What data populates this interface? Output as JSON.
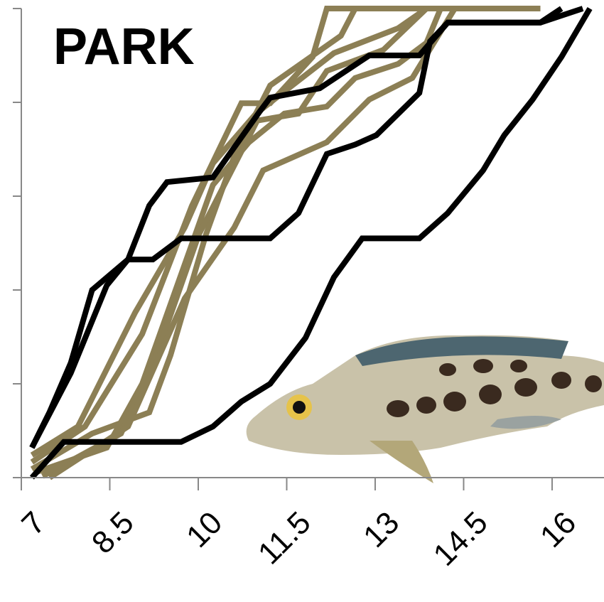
{
  "chart_data": {
    "type": "line",
    "title": "PARK",
    "xlim": [
      7,
      16.88
    ],
    "ylim": [
      0,
      1
    ],
    "xticks": [
      7,
      8.5,
      10,
      11.5,
      13,
      14.5,
      16
    ],
    "yticks": [
      0,
      0.2,
      0.4,
      0.6,
      0.8,
      1
    ],
    "series": [
      {
        "color": "#8c7f55",
        "x": [
          7.18,
          8.08,
          9.05,
          9.89,
          10.73,
          11.22,
          11.94,
          12.18,
          15.8
        ],
        "values": [
          0.033,
          0.109,
          0.306,
          0.579,
          0.798,
          0.798,
          0.897,
          1.0,
          1.0
        ]
      },
      {
        "color": "#8c7f55",
        "x": [
          7.18,
          8.2,
          9.17,
          9.53,
          10.13,
          10.61,
          11.22,
          12.42,
          12.66,
          15.8
        ],
        "values": [
          0.018,
          0.094,
          0.139,
          0.261,
          0.518,
          0.685,
          0.836,
          0.942,
          1.0,
          1.0
        ]
      },
      {
        "color": "#8c7f55",
        "x": [
          7.24,
          8.45,
          9.05,
          9.65,
          10.25,
          10.86,
          11.46,
          12.18,
          12.66,
          13.39,
          13.87,
          14.11,
          15.8
        ],
        "values": [
          0.011,
          0.064,
          0.2,
          0.412,
          0.624,
          0.715,
          0.776,
          0.791,
          0.852,
          0.882,
          0.927,
          1.0,
          1.0
        ]
      },
      {
        "color": "#8c7f55",
        "x": [
          7.36,
          8.69,
          9.29,
          10.01,
          11.0,
          11.7,
          12.18,
          13.14,
          13.87,
          15.8
        ],
        "values": [
          0.003,
          0.094,
          0.261,
          0.518,
          0.761,
          0.776,
          0.867,
          0.912,
          1.0,
          1.0
        ]
      },
      {
        "color": "#8c7f55",
        "x": [
          7.48,
          8.81,
          9.77,
          10.61,
          11.1,
          12.18,
          12.9,
          13.63,
          14.35,
          15.8
        ],
        "values": [
          0,
          0.109,
          0.382,
          0.533,
          0.655,
          0.715,
          0.806,
          0.852,
          1.0,
          1.0
        ]
      },
      {
        "color": "#8c7f55",
        "x": [
          7.18,
          7.96,
          8.93,
          9.77,
          10.25,
          10.98,
          12.3,
          13.39,
          13.87,
          15.8
        ],
        "values": [
          0.048,
          0.109,
          0.352,
          0.533,
          0.67,
          0.776,
          0.905,
          0.958,
          1.0,
          1.0
        ]
      },
      {
        "color": "#000000",
        "x": [
          7.18,
          7.48,
          7.84,
          8.2,
          8.81,
          9.17,
          9.47,
          10.25,
          11.04,
          11.22,
          12.06,
          12.9,
          13.75,
          14.23,
          15.8,
          16.16
        ],
        "values": [
          0.064,
          0.14,
          0.245,
          0.4,
          0.465,
          0.58,
          0.63,
          0.64,
          0.78,
          0.81,
          0.83,
          0.9,
          0.9,
          0.97,
          0.97,
          1.0
        ]
      },
      {
        "color": "#000000",
        "x": [
          7.18,
          7.84,
          8.45,
          8.81,
          9.23,
          9.71,
          11.22,
          11.7,
          12.18,
          12.66,
          13.02,
          13.75,
          13.93,
          14.23,
          15.8,
          16.52
        ],
        "values": [
          0.064,
          0.223,
          0.41,
          0.465,
          0.465,
          0.51,
          0.51,
          0.564,
          0.69,
          0.71,
          0.73,
          0.82,
          0.93,
          0.97,
          0.97,
          1.0
        ]
      },
      {
        "color": "#000000",
        "x": [
          7.18,
          7.72,
          9.71,
          10.25,
          10.73,
          11.22,
          11.82,
          12.3,
          12.78,
          13.75,
          14.23,
          14.83,
          15.19,
          15.67,
          16.16,
          16.64
        ],
        "values": [
          0,
          0.076,
          0.076,
          0.109,
          0.162,
          0.2,
          0.298,
          0.427,
          0.51,
          0.51,
          0.564,
          0.655,
          0.73,
          0.806,
          0.897,
          1.0
        ]
      }
    ]
  }
}
